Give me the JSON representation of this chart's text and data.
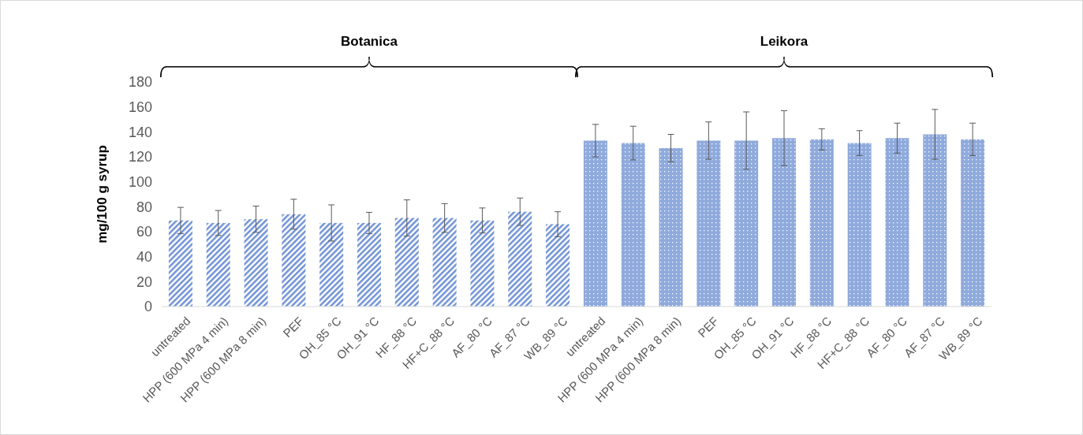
{
  "chart_data": {
    "type": "bar",
    "ylabel": "mg/100 g syrup",
    "categories": [
      "untreated",
      "HPP (600 MPa 4 min)",
      "HPP (600 MPa 8 min)",
      "PEF",
      "OH_85 °C",
      "OH_91 °C",
      "HF_88 °C",
      "HF+C_88 °C",
      "AF_80 °C",
      "AF_87 °C",
      "WB_89 °C",
      "untreated",
      "HPP (600 MPa 4 min)",
      "HPP (600 MPa 8 min)",
      "PEF",
      "OH_85 °C",
      "OH_91 °C",
      "HF_88 °C",
      "HF+C_88 °C",
      "AF_80 °C",
      "AF_87 °C",
      "WB_89 °C"
    ],
    "values": [
      69,
      67,
      70,
      74,
      67,
      67,
      71,
      71,
      69,
      76,
      66,
      133,
      131,
      127,
      133,
      133,
      135,
      134,
      131,
      135,
      138,
      134
    ],
    "errors": [
      10.5,
      10,
      10.5,
      12,
      14.5,
      8.5,
      14.5,
      11.5,
      10,
      11,
      10,
      13,
      13.5,
      11,
      15,
      23,
      22,
      8.5,
      10,
      12,
      20,
      13
    ],
    "colors": [
      "#6f91d4",
      "#6f91d4",
      "#6f91d4",
      "#6f91d4",
      "#6f91d4",
      "#6f91d4",
      "#6f91d4",
      "#6f91d4",
      "#6f91d4",
      "#6f91d4",
      "#6f91d4",
      "#8faadc",
      "#8faadc",
      "#8faadc",
      "#8faadc",
      "#8faadc",
      "#8faadc",
      "#8faadc",
      "#8faadc",
      "#8faadc",
      "#8faadc",
      "#8faadc"
    ],
    "ylim": [
      0,
      180
    ],
    "yticks": [
      0,
      20,
      40,
      60,
      80,
      100,
      120,
      140,
      160,
      180
    ],
    "annotations": [
      "Botanica",
      "Leikora"
    ]
  }
}
